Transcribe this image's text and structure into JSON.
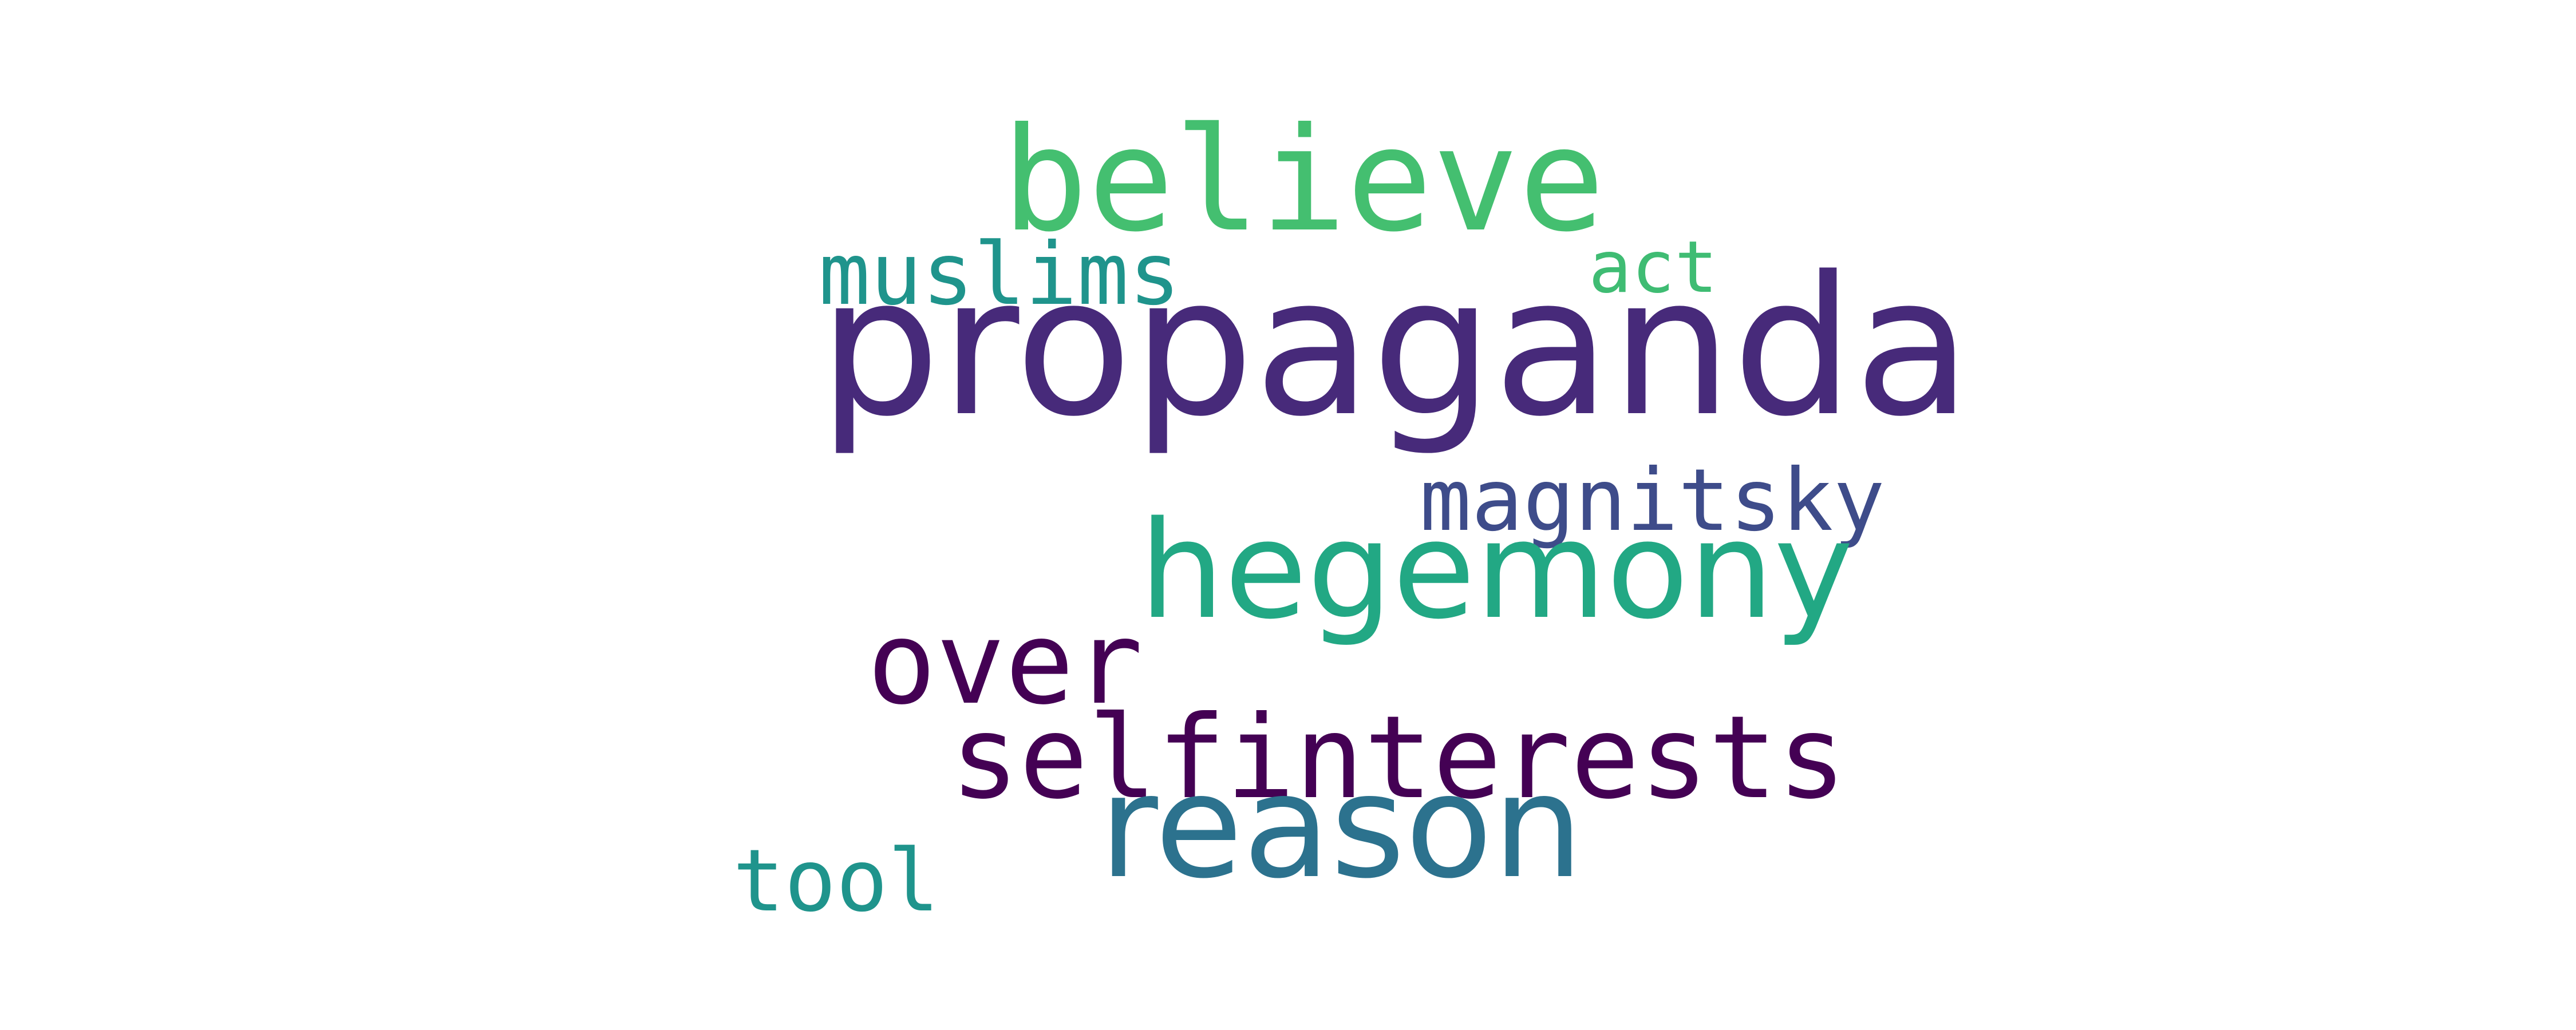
{
  "words": [
    {
      "id": "propaganda",
      "text": "propaganda",
      "color": "#472a7a"
    },
    {
      "id": "believe",
      "text": "believe",
      "color": "#44bf70"
    },
    {
      "id": "muslims",
      "text": "muslims",
      "color": "#1f948c"
    },
    {
      "id": "act",
      "text": "act",
      "color": "#3fbc73"
    },
    {
      "id": "magnitsky",
      "text": "magnitsky",
      "color": "#3e4c8a"
    },
    {
      "id": "hegemony",
      "text": "hegemony",
      "color": "#22a884"
    },
    {
      "id": "over",
      "text": "over",
      "color": "#440154"
    },
    {
      "id": "selfinterests",
      "text": "selfinterests",
      "color": "#440154"
    },
    {
      "id": "reason",
      "text": "reason",
      "color": "#2c728e"
    },
    {
      "id": "tool",
      "text": "tool",
      "color": "#1f948c"
    }
  ],
  "background": "#ffffff"
}
